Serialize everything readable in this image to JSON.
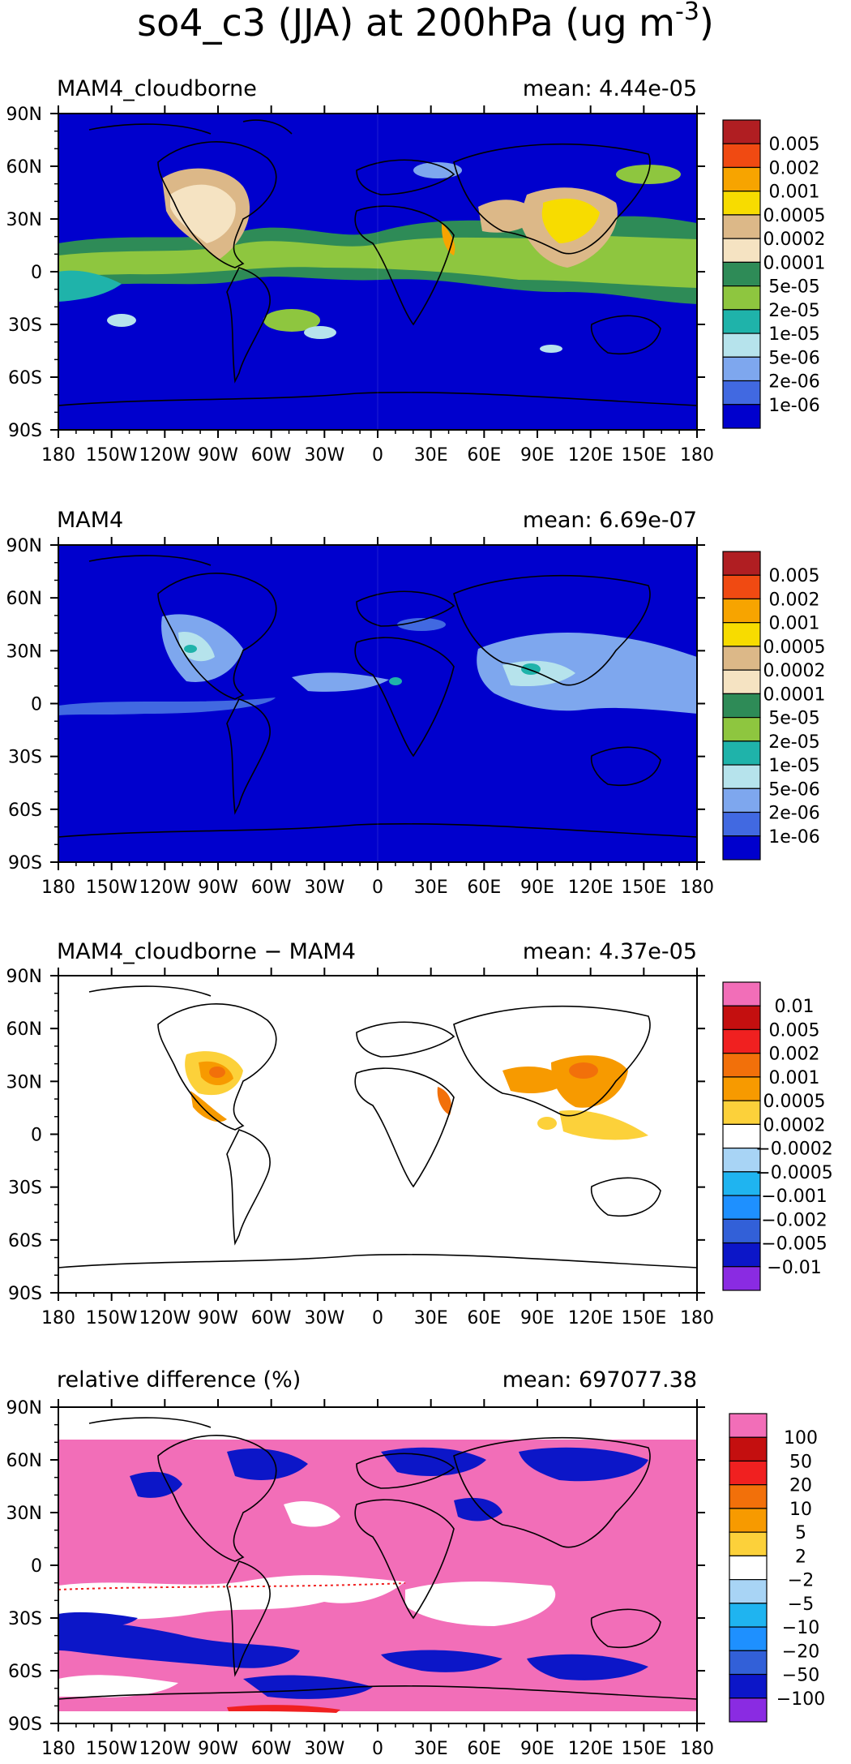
{
  "title": "so4_c3 (JJA) at 200hPa (ug m",
  "title_superscript": "-3",
  "chart_data": [
    {
      "type": "heatmap",
      "title": "MAM4_cloudborne",
      "mean_text": "mean: 4.44e-05",
      "x_ticks": [
        "180",
        "150W",
        "120W",
        "90W",
        "60W",
        "30W",
        "0",
        "30E",
        "60E",
        "90E",
        "120E",
        "150E",
        "180"
      ],
      "y_ticks": [
        "90N",
        "60N",
        "30N",
        "0",
        "30S",
        "60S",
        "90S"
      ],
      "xlim": [
        -180,
        180
      ],
      "ylim": [
        -90,
        90
      ],
      "colorbar_labels": [
        "0.005",
        "0.002",
        "0.001",
        "0.0005",
        "0.0002",
        "0.0001",
        "5e-05",
        "2e-05",
        "1e-05",
        "5e-06",
        "2e-06",
        "1e-06"
      ],
      "colorbar_colors": [
        "#b01e22",
        "#f04a12",
        "#f7a400",
        "#f7dc00",
        "#dcb888",
        "#f5e3c2",
        "#2e8b57",
        "#8ec63f",
        "#1fb3aa",
        "#b6e3ec",
        "#7ea7ee",
        "#4169e1",
        "#0000cd"
      ]
    },
    {
      "type": "heatmap",
      "title": "MAM4",
      "mean_text": "mean: 6.69e-07",
      "x_ticks": [
        "180",
        "150W",
        "120W",
        "90W",
        "60W",
        "30W",
        "0",
        "30E",
        "60E",
        "90E",
        "120E",
        "150E",
        "180"
      ],
      "y_ticks": [
        "90N",
        "60N",
        "30N",
        "0",
        "30S",
        "60S",
        "90S"
      ],
      "xlim": [
        -180,
        180
      ],
      "ylim": [
        -90,
        90
      ],
      "colorbar_labels": [
        "0.005",
        "0.002",
        "0.001",
        "0.0005",
        "0.0002",
        "0.0001",
        "5e-05",
        "2e-05",
        "1e-05",
        "5e-06",
        "2e-06",
        "1e-06"
      ],
      "colorbar_colors": [
        "#b01e22",
        "#f04a12",
        "#f7a400",
        "#f7dc00",
        "#dcb888",
        "#f5e3c2",
        "#2e8b57",
        "#8ec63f",
        "#1fb3aa",
        "#b6e3ec",
        "#7ea7ee",
        "#4169e1",
        "#0000cd"
      ]
    },
    {
      "type": "heatmap",
      "title": "MAM4_cloudborne − MAM4",
      "mean_text": "mean: 4.37e-05",
      "x_ticks": [
        "180",
        "150W",
        "120W",
        "90W",
        "60W",
        "30W",
        "0",
        "30E",
        "60E",
        "90E",
        "120E",
        "150E",
        "180"
      ],
      "y_ticks": [
        "90N",
        "60N",
        "30N",
        "0",
        "30S",
        "60S",
        "90S"
      ],
      "xlim": [
        -180,
        180
      ],
      "ylim": [
        -90,
        90
      ],
      "colorbar_labels": [
        "0.01",
        "0.005",
        "0.002",
        "0.001",
        "0.0005",
        "0.0002",
        "−0.0002",
        "−0.0005",
        "−0.001",
        "−0.002",
        "−0.005",
        "−0.01"
      ],
      "colorbar_colors": [
        "#f26eb8",
        "#c40f0f",
        "#f02020",
        "#f2700a",
        "#f79a00",
        "#fcd13a",
        "#ffffff",
        "#a8d4f5",
        "#1fb4f0",
        "#1e90ff",
        "#3260d8",
        "#0c16c8",
        "#8a2be2"
      ]
    },
    {
      "type": "heatmap",
      "title": "relative difference (%)",
      "mean_text": "mean: 697077.38",
      "x_ticks": [
        "180",
        "150W",
        "120W",
        "90W",
        "60W",
        "30W",
        "0",
        "30E",
        "60E",
        "90E",
        "120E",
        "150E",
        "180"
      ],
      "y_ticks": [
        "90N",
        "60N",
        "30N",
        "0",
        "30S",
        "60S",
        "90S"
      ],
      "xlim": [
        -180,
        180
      ],
      "ylim": [
        -90,
        90
      ],
      "colorbar_labels": [
        "100",
        "50",
        "20",
        "10",
        "5",
        "2",
        "−2",
        "−5",
        "−10",
        "−20",
        "−50",
        "−100"
      ],
      "colorbar_colors": [
        "#f26eb8",
        "#c40f0f",
        "#f02020",
        "#f2700a",
        "#f79a00",
        "#fcd13a",
        "#ffffff",
        "#a8d4f5",
        "#1fb4f0",
        "#1e90ff",
        "#3260d8",
        "#0c16c8",
        "#8a2be2"
      ]
    }
  ]
}
